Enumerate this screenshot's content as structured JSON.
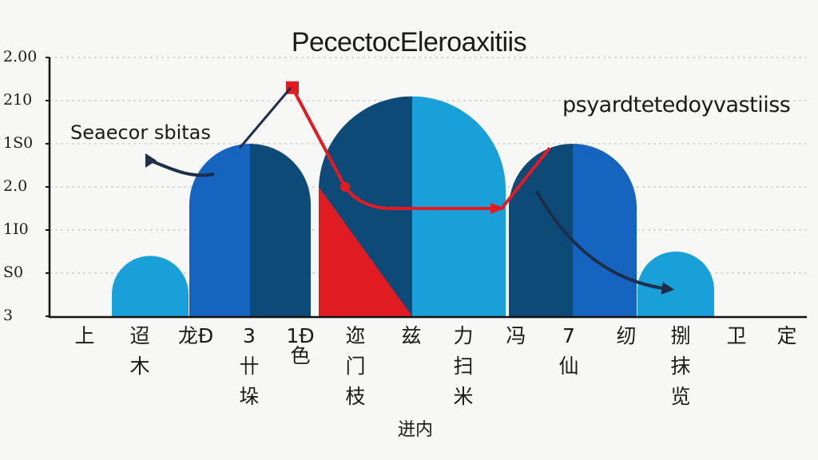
{
  "chart_data": {
    "type": "bar",
    "title": "PecectocEleroaxitiis",
    "ylabel": "",
    "xlabel": "迸内",
    "y_tick_labels": [
      "3",
      "S0",
      "1I0",
      "2.0",
      "1S0",
      "210",
      "2.00"
    ],
    "ylim": [
      0,
      6
    ],
    "x_tick_labels": [
      [
        "上"
      ],
      [
        "迢",
        "木"
      ],
      [
        "龙Ð"
      ],
      [
        "3",
        "卄",
        "垛"
      ],
      [
        "1Ð色"
      ],
      [
        "迩",
        "门",
        "枝"
      ],
      [
        "兹"
      ],
      [
        "力",
        "扫",
        "米"
      ],
      [
        "冯"
      ],
      [
        "7",
        "仙"
      ],
      [
        "纫"
      ],
      [
        "捌",
        "抹",
        "览"
      ],
      [
        "卫"
      ],
      [
        "定"
      ]
    ],
    "series": [
      {
        "name": "Seaecor sbitas",
        "values": [
          1.4,
          4.0,
          5.1,
          4.0,
          1.5
        ]
      },
      {
        "name": "psyardtetedoyvastiiss",
        "values": [
          5.3,
          3.0,
          2.5,
          2.5,
          3.9
        ]
      }
    ],
    "grid": true,
    "colors": {
      "light_blue": "#1aa0d8",
      "mid_blue": "#1565c0",
      "dark_blue": "#0d4a78",
      "red": "#e01b22",
      "arrow_dark": "#1c2e4a"
    }
  }
}
